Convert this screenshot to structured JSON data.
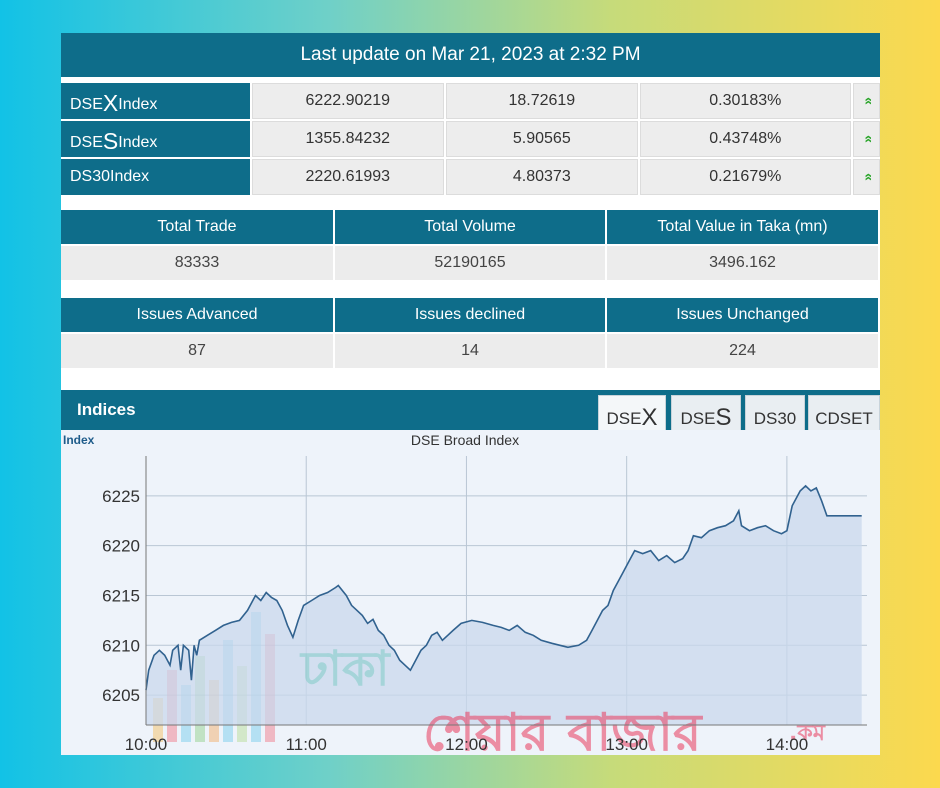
{
  "header": {
    "last_update": "Last update on Mar 21, 2023 at 2:32 PM"
  },
  "indices": [
    {
      "prefix": "DSE",
      "big": "X",
      "suffix": " Index",
      "value": "6222.90219",
      "change": "18.72619",
      "percent": "0.30183%",
      "arrow": "»"
    },
    {
      "prefix": "DSE",
      "big": "S",
      "suffix": " Index",
      "value": "1355.84232",
      "change": "5.90565",
      "percent": "0.43748%",
      "arrow": "»"
    },
    {
      "prefix": "DS30",
      "big": "",
      "suffix": " Index",
      "value": "2220.61993",
      "change": "4.80373",
      "percent": "0.21679%",
      "arrow": "»"
    }
  ],
  "trade_stats": {
    "headers": [
      "Total Trade",
      "Total Volume",
      "Total Value in Taka (mn)"
    ],
    "values": [
      "83333",
      "52190165",
      "3496.162"
    ]
  },
  "issue_stats": {
    "headers": [
      "Issues Advanced",
      "Issues declined",
      "Issues Unchanged"
    ],
    "values": [
      "87",
      "14",
      "224"
    ]
  },
  "indices_panel": {
    "title": "Indices",
    "tabs": [
      {
        "prefix": "DSE",
        "big": "X"
      },
      {
        "prefix": "DSE",
        "big": "S"
      },
      {
        "prefix": "DS30",
        "big": ""
      },
      {
        "prefix": "CDSET",
        "big": ""
      }
    ],
    "active_tab": 0
  },
  "watermark": {
    "line1": "ঢাকা",
    "line2": "শেয়ার বাজার",
    "suffix": ".কম"
  },
  "colors": {
    "brand": "#0e6d8a",
    "up_arrow": "#2aa52a",
    "chart_fill": "#c9d8ec",
    "chart_line": "#31628f"
  },
  "chart_data": {
    "type": "area",
    "title": "DSE Broad Index",
    "ylabel": "Index",
    "xlabel": "",
    "x_ticks": [
      "10:00",
      "11:00",
      "12:00",
      "13:00",
      "14:00"
    ],
    "y_ticks": [
      6205,
      6210,
      6215,
      6220,
      6225
    ],
    "ylim": [
      6202,
      6229
    ],
    "xlim_minutes": [
      600,
      870
    ],
    "series": [
      {
        "values": [
          [
            600,
            6205.5
          ],
          [
            601,
            6207.5
          ],
          [
            603,
            6209
          ],
          [
            605,
            6209.5
          ],
          [
            607,
            6209
          ],
          [
            609,
            6208
          ],
          [
            610,
            6209.5
          ],
          [
            612,
            6210
          ],
          [
            613,
            6207.5
          ],
          [
            614,
            6210
          ],
          [
            616,
            6209.5
          ],
          [
            617,
            6206.5
          ],
          [
            618,
            6210
          ],
          [
            619,
            6209
          ],
          [
            620,
            6210.5
          ],
          [
            623,
            6211
          ],
          [
            626,
            6211.5
          ],
          [
            629,
            6212
          ],
          [
            632,
            6212.3
          ],
          [
            635,
            6212.5
          ],
          [
            638,
            6213.5
          ],
          [
            641,
            6215
          ],
          [
            643,
            6214.5
          ],
          [
            645,
            6215.3
          ],
          [
            647,
            6214.8
          ],
          [
            649,
            6214.5
          ],
          [
            651,
            6213.5
          ],
          [
            653,
            6212
          ],
          [
            655,
            6210.8
          ],
          [
            657,
            6212.5
          ],
          [
            659,
            6214
          ],
          [
            662,
            6214.5
          ],
          [
            665,
            6215
          ],
          [
            668,
            6215.3
          ],
          [
            671,
            6215.8
          ],
          [
            672,
            6216
          ],
          [
            675,
            6215
          ],
          [
            677,
            6214
          ],
          [
            679,
            6213.5
          ],
          [
            681,
            6213
          ],
          [
            683,
            6212.2
          ],
          [
            685,
            6212.6
          ],
          [
            687,
            6211.5
          ],
          [
            689,
            6211
          ],
          [
            691,
            6210
          ],
          [
            693,
            6209.5
          ],
          [
            695,
            6208.5
          ],
          [
            697,
            6208
          ],
          [
            699,
            6207.5
          ],
          [
            701,
            6208.5
          ],
          [
            703,
            6209.5
          ],
          [
            705,
            6210
          ],
          [
            707,
            6211
          ],
          [
            709,
            6211.3
          ],
          [
            711,
            6210.5
          ],
          [
            713,
            6211
          ],
          [
            715,
            6211.5
          ],
          [
            718,
            6212.2
          ],
          [
            722,
            6212.5
          ],
          [
            726,
            6212.3
          ],
          [
            730,
            6212
          ],
          [
            733,
            6211.8
          ],
          [
            736,
            6211.5
          ],
          [
            739,
            6212
          ],
          [
            742,
            6211.3
          ],
          [
            745,
            6211
          ],
          [
            748,
            6210.5
          ],
          [
            752,
            6210.2
          ],
          [
            755,
            6210
          ],
          [
            758,
            6209.8
          ],
          [
            762,
            6210
          ],
          [
            765,
            6210.5
          ],
          [
            767,
            6211.5
          ],
          [
            769,
            6212.5
          ],
          [
            771,
            6213.5
          ],
          [
            773,
            6214
          ],
          [
            775,
            6215.5
          ],
          [
            777,
            6216.5
          ],
          [
            779,
            6217.5
          ],
          [
            781,
            6218.5
          ],
          [
            783,
            6219.5
          ],
          [
            786,
            6219.2
          ],
          [
            789,
            6219.5
          ],
          [
            792,
            6218.5
          ],
          [
            795,
            6219
          ],
          [
            798,
            6218.3
          ],
          [
            801,
            6218.7
          ],
          [
            803,
            6219.5
          ],
          [
            805,
            6221
          ],
          [
            808,
            6220.8
          ],
          [
            811,
            6221.5
          ],
          [
            814,
            6221.8
          ],
          [
            817,
            6222
          ],
          [
            820,
            6222.5
          ],
          [
            822,
            6223.5
          ],
          [
            823,
            6222
          ],
          [
            826,
            6221.5
          ],
          [
            829,
            6221.8
          ],
          [
            832,
            6222
          ],
          [
            835,
            6221.5
          ],
          [
            838,
            6221.2
          ],
          [
            840,
            6221.5
          ],
          [
            842,
            6224
          ],
          [
            845,
            6225.5
          ],
          [
            847,
            6226
          ],
          [
            849,
            6225.5
          ],
          [
            851,
            6225.8
          ],
          [
            853,
            6224.5
          ],
          [
            855,
            6223
          ],
          [
            860,
            6223
          ],
          [
            868,
            6223
          ]
        ]
      }
    ]
  }
}
